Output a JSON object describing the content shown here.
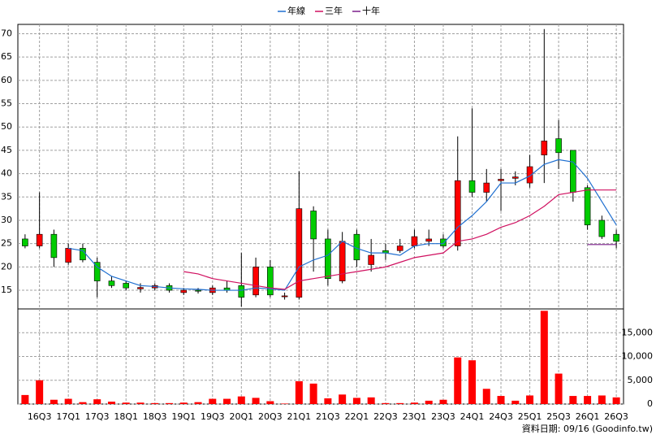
{
  "chart_data": {
    "type": "candlestick",
    "categories": [
      null,
      "16Q3",
      null,
      "17Q1",
      null,
      "17Q3",
      null,
      "18Q1",
      null,
      "18Q3",
      null,
      "19Q1",
      null,
      "19Q3",
      null,
      "20Q1",
      null,
      "20Q3",
      null,
      "21Q1",
      null,
      "21Q3",
      null,
      "22Q1",
      null,
      "22Q3",
      null,
      "23Q1",
      null,
      "23Q3",
      null,
      "24Q1",
      null,
      "24Q3",
      null,
      "25Q1",
      null,
      "25Q3",
      null,
      "26Q1",
      null,
      "26Q3"
    ],
    "open": [
      26,
      24.5,
      27,
      21,
      24,
      21,
      17,
      16.5,
      15.3,
      15.5,
      16,
      14.5,
      15,
      14.5,
      15.5,
      16,
      14,
      20,
      13.6,
      13.5,
      32,
      26,
      17,
      27,
      20.5,
      23.5,
      23.5,
      24.5,
      25.5,
      26,
      24.5,
      38.5,
      36,
      38.5,
      39,
      38,
      44,
      47.5,
      45,
      37,
      30,
      27
    ],
    "high": [
      27,
      36,
      28,
      25,
      25,
      22,
      18,
      17,
      16.5,
      16.5,
      16.5,
      15.5,
      15.5,
      16,
      17,
      23,
      22,
      21.5,
      14.5,
      40.5,
      33,
      28,
      27.5,
      28,
      26,
      25,
      26,
      28,
      28,
      27,
      48,
      54,
      41,
      41,
      40.5,
      44,
      71,
      51.5,
      45,
      37.5,
      31,
      28
    ],
    "low": [
      24,
      24,
      20,
      20.5,
      21,
      13.5,
      15.5,
      15,
      14.5,
      15,
      14.5,
      14,
      14.3,
      14,
      14.5,
      11.5,
      13.5,
      13.5,
      13,
      13,
      19,
      16,
      16.5,
      20,
      19,
      21.5,
      23,
      24,
      24.5,
      24,
      23.5,
      35,
      34,
      32,
      37.5,
      37,
      38,
      41,
      34,
      28,
      26,
      24
    ],
    "close": [
      24.5,
      27,
      22,
      24,
      21.5,
      17,
      16,
      15.5,
      15.6,
      16,
      15,
      15,
      14.8,
      15.5,
      15,
      13.5,
      20,
      14,
      13.8,
      32.5,
      26,
      17.5,
      25.5,
      21.5,
      22.5,
      23,
      24.5,
      26.5,
      26,
      24.5,
      38.5,
      36,
      38,
      38.8,
      39.3,
      41.5,
      47,
      44.5,
      36,
      29,
      26.5,
      25.5
    ],
    "up_color": "#ff0000",
    "down_color": "#00cc00",
    "lines": [
      {
        "name": "年線",
        "color": "#1f6fd0",
        "values": [
          null,
          null,
          null,
          24,
          23.5,
          20,
          18,
          17,
          16,
          15.8,
          15.5,
          15.3,
          15.2,
          15,
          15,
          15,
          15.5,
          15.3,
          15,
          20,
          21.5,
          22.5,
          25.5,
          24,
          23,
          23,
          22.5,
          24.5,
          25,
          25,
          28.5,
          31,
          34,
          38,
          38,
          39.5,
          42,
          43,
          42.5,
          39,
          34,
          29
        ]
      },
      {
        "name": "三年",
        "color": "#d01060",
        "values": [
          null,
          null,
          null,
          null,
          null,
          null,
          null,
          null,
          null,
          null,
          null,
          19,
          18.5,
          17.5,
          17,
          16.5,
          16,
          15.5,
          15.2,
          17,
          17.5,
          18,
          18.5,
          19,
          19.5,
          20,
          21,
          22,
          22.5,
          23,
          25.5,
          26,
          27,
          28.5,
          29.5,
          31,
          33,
          35.5,
          36,
          36.5,
          36.5,
          36.5
        ]
      },
      {
        "name": "十年",
        "color": "#7a1f8a",
        "values": [
          null,
          null,
          null,
          null,
          null,
          null,
          null,
          null,
          null,
          null,
          null,
          null,
          null,
          null,
          null,
          null,
          null,
          null,
          null,
          null,
          null,
          null,
          null,
          null,
          null,
          null,
          null,
          null,
          null,
          null,
          null,
          null,
          null,
          null,
          null,
          null,
          null,
          null,
          null,
          24.8,
          24.8,
          24.8
        ]
      }
    ],
    "ylim": [
      11,
      72
    ],
    "yticks": [
      15,
      20,
      25,
      30,
      35,
      40,
      45,
      50,
      55,
      60,
      65,
      70
    ],
    "volume": {
      "color": "#ff0000",
      "values": [
        1900,
        5000,
        900,
        1100,
        400,
        1000,
        500,
        300,
        300,
        200,
        200,
        300,
        400,
        1100,
        1100,
        1600,
        1300,
        600,
        100,
        4800,
        4300,
        1200,
        2000,
        1300,
        1400,
        200,
        200,
        300,
        700,
        900,
        9800,
        9200,
        3200,
        1700,
        700,
        1800,
        19600,
        6400,
        1700,
        1700,
        1800,
        1400
      ]
    },
    "y2lim": [
      0,
      20000
    ],
    "y2ticks": [
      0,
      {
        "value": 5000,
        "label": "5,000"
      },
      {
        "value": 10000,
        "label": "10,000"
      },
      {
        "value": 15000,
        "label": "15,000"
      }
    ],
    "grid": true,
    "source": "資料日期: 09/16 (Goodinfo.tw)"
  }
}
